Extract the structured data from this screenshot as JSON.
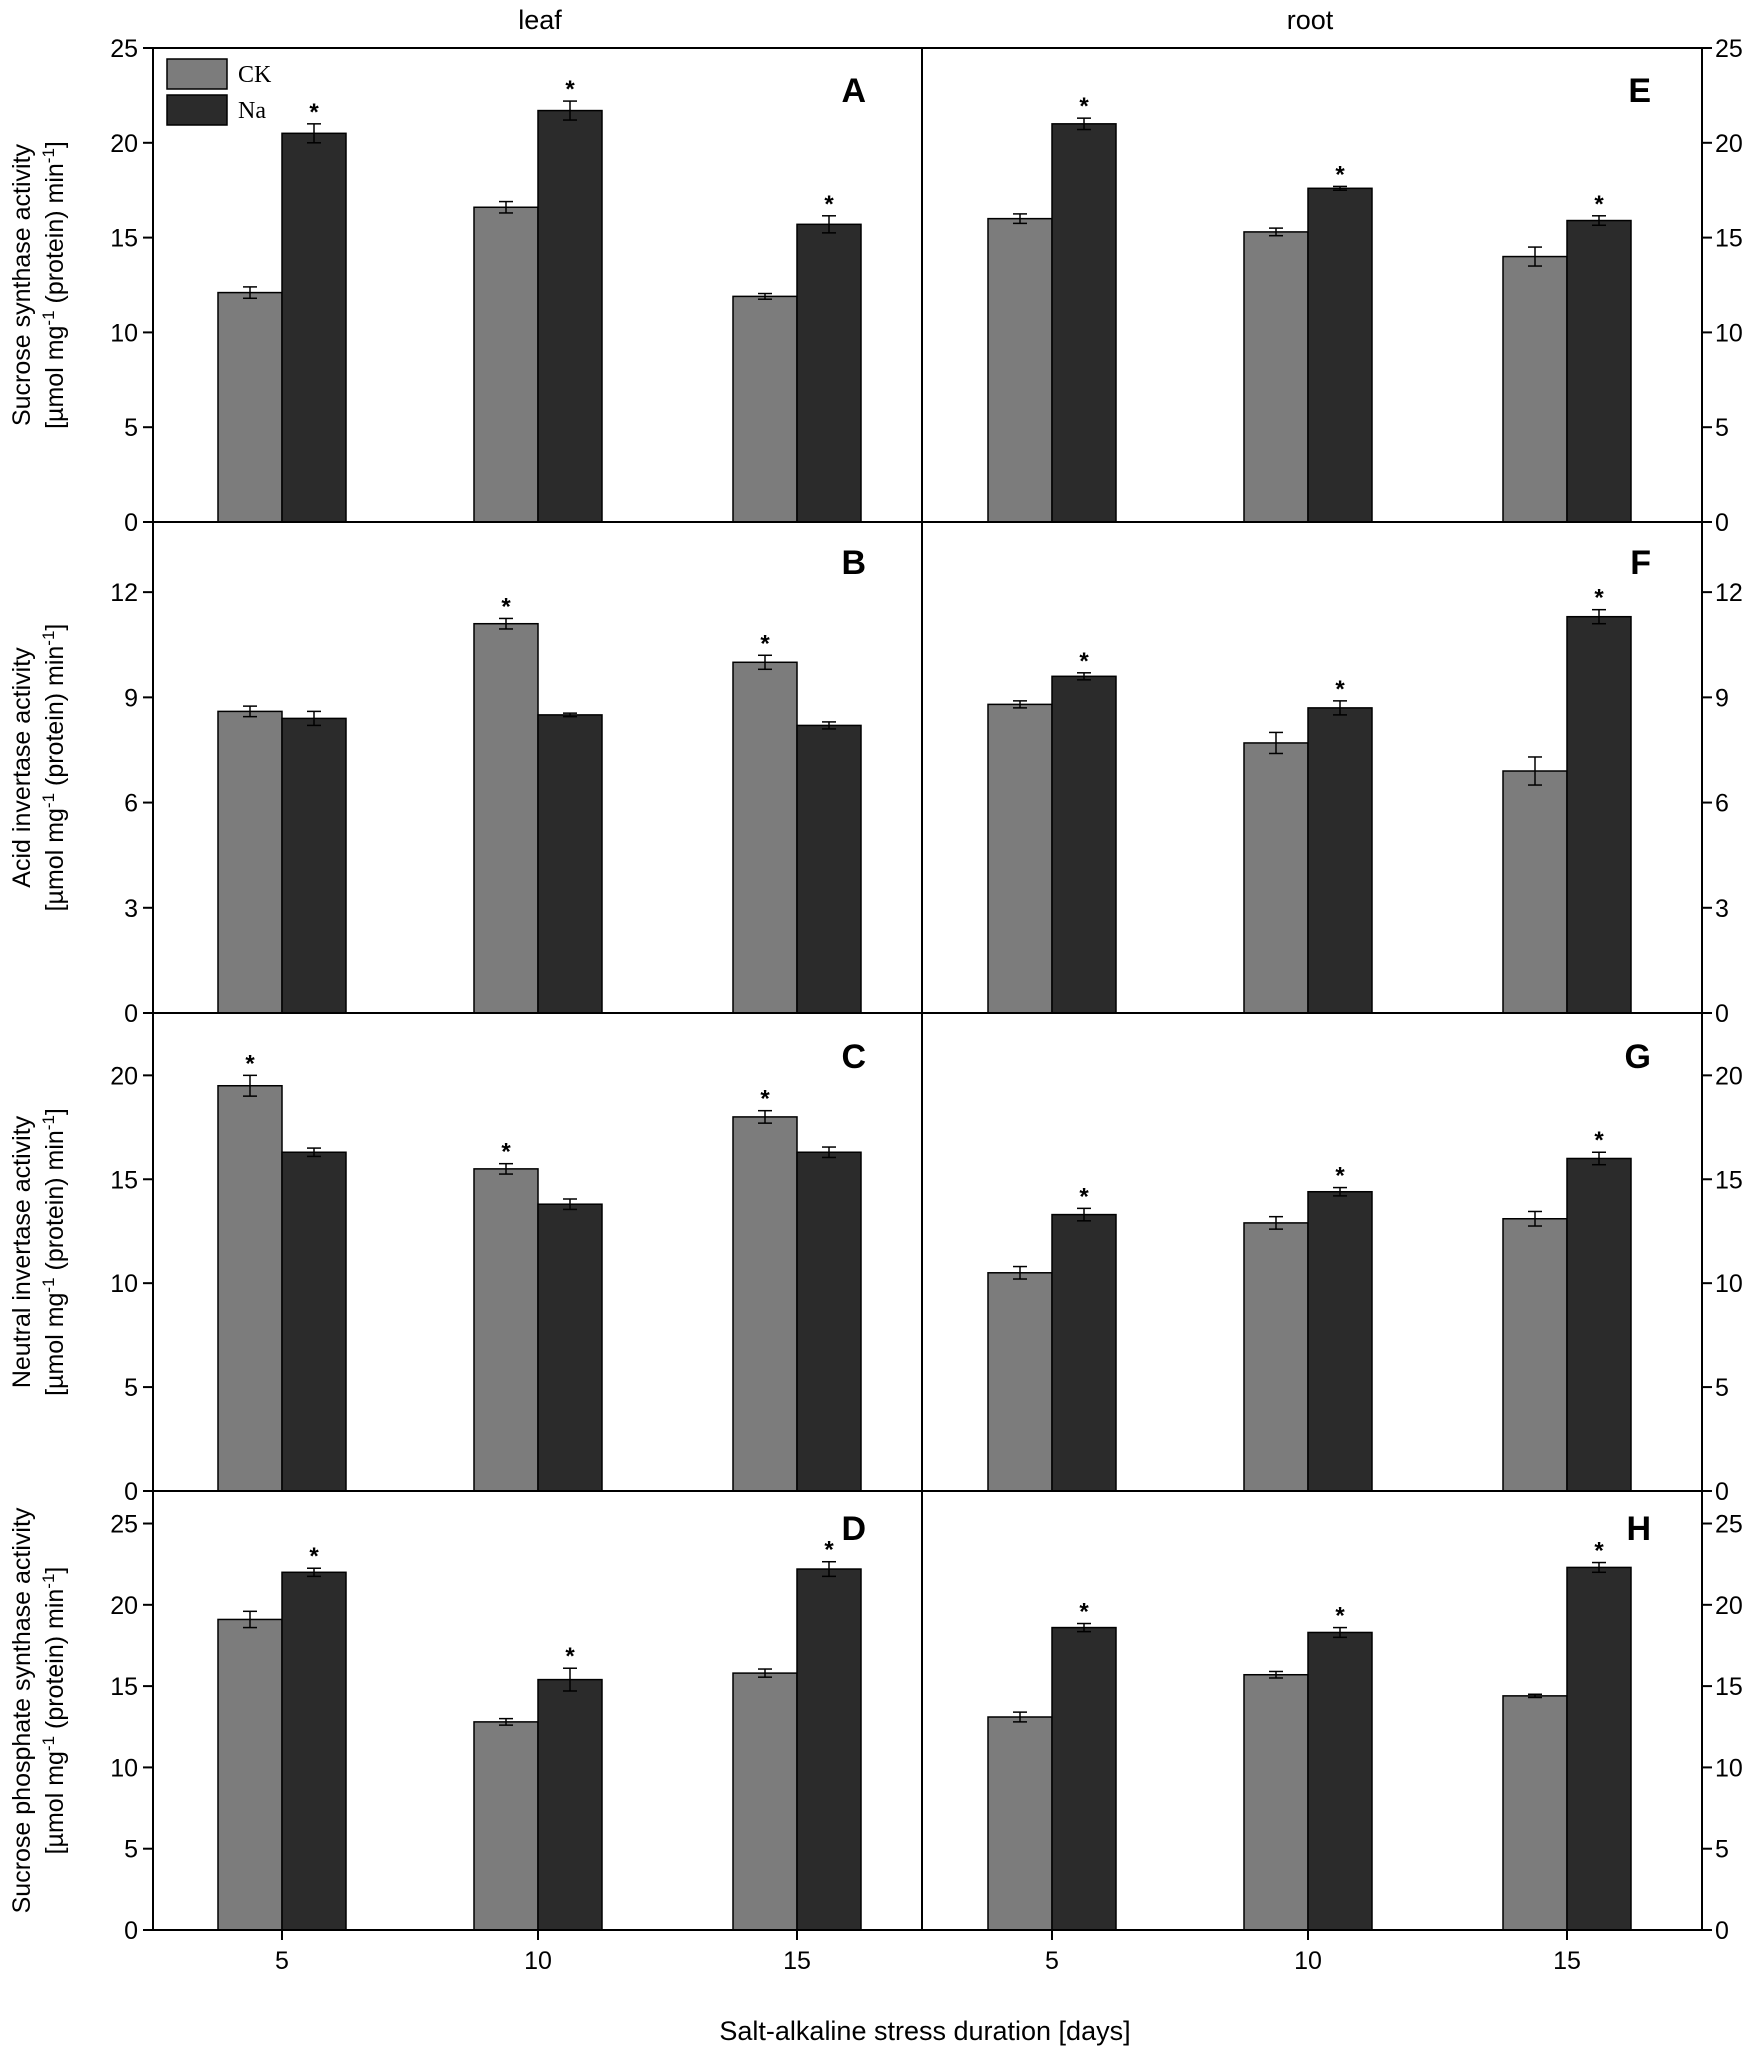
{
  "chart_data": {
    "type": "bar",
    "xlabel": "Salt-alkaline stress duration [days]",
    "categories": [
      "5",
      "10",
      "15"
    ],
    "columns": [
      "leaf",
      "root"
    ],
    "legend": {
      "position": "top-left",
      "entries": [
        "CK",
        "Na"
      ]
    },
    "colors": {
      "CK": "#7c7c7c",
      "Na": "#2b2b2b",
      "axis": "#000000"
    },
    "rows": [
      {
        "ylabel_line1": "Sucrose synthase activity",
        "ylabel_line2": [
          "[µmol mg",
          "-1",
          " (protein) min",
          "-1",
          "]"
        ],
        "ylim": [
          0,
          25
        ],
        "yticks": [
          "0",
          "5",
          "10",
          "15",
          "20",
          "25"
        ],
        "panels": [
          {
            "letter": "A",
            "series": [
              {
                "name": "CK",
                "values": [
                  12.1,
                  16.6,
                  11.9
                ],
                "errors": [
                  0.3,
                  0.3,
                  0.15
                ],
                "sig": [
                  false,
                  false,
                  false
                ]
              },
              {
                "name": "Na",
                "values": [
                  20.5,
                  21.7,
                  15.7
                ],
                "errors": [
                  0.5,
                  0.5,
                  0.45
                ],
                "sig": [
                  true,
                  true,
                  true
                ]
              }
            ]
          },
          {
            "letter": "E",
            "series": [
              {
                "name": "CK",
                "values": [
                  16.0,
                  15.3,
                  14.0
                ],
                "errors": [
                  0.25,
                  0.2,
                  0.5
                ],
                "sig": [
                  false,
                  false,
                  false
                ]
              },
              {
                "name": "Na",
                "values": [
                  21.0,
                  17.6,
                  15.9
                ],
                "errors": [
                  0.3,
                  0.1,
                  0.25
                ],
                "sig": [
                  true,
                  true,
                  true
                ]
              }
            ]
          }
        ]
      },
      {
        "ylabel_line1": "Acid invertase activity",
        "ylabel_line2": [
          "[µmol mg",
          "-1",
          " (protein) min",
          "-1",
          "]"
        ],
        "ylim": [
          0,
          14
        ],
        "yticks": [
          "0",
          "3",
          "6",
          "9",
          "12"
        ],
        "panels": [
          {
            "letter": "B",
            "series": [
              {
                "name": "CK",
                "values": [
                  8.6,
                  11.1,
                  10.0
                ],
                "errors": [
                  0.15,
                  0.15,
                  0.2
                ],
                "sig": [
                  false,
                  true,
                  true
                ]
              },
              {
                "name": "Na",
                "values": [
                  8.4,
                  8.5,
                  8.2
                ],
                "errors": [
                  0.2,
                  0.05,
                  0.1
                ],
                "sig": [
                  false,
                  false,
                  false
                ]
              }
            ]
          },
          {
            "letter": "F",
            "series": [
              {
                "name": "CK",
                "values": [
                  8.8,
                  7.7,
                  6.9
                ],
                "errors": [
                  0.1,
                  0.3,
                  0.4
                ],
                "sig": [
                  false,
                  false,
                  false
                ]
              },
              {
                "name": "Na",
                "values": [
                  9.6,
                  8.7,
                  11.3
                ],
                "errors": [
                  0.1,
                  0.2,
                  0.2
                ],
                "sig": [
                  true,
                  true,
                  true
                ]
              }
            ]
          }
        ]
      },
      {
        "ylabel_line1": "Neutral invertase activity",
        "ylabel_line2": [
          "[µmol mg",
          "-1",
          " (protein) min",
          "-1",
          "]"
        ],
        "ylim": [
          0,
          23
        ],
        "yticks": [
          "0",
          "5",
          "10",
          "15",
          "20"
        ],
        "panels": [
          {
            "letter": "C",
            "series": [
              {
                "name": "CK",
                "values": [
                  19.5,
                  15.5,
                  18.0
                ],
                "errors": [
                  0.5,
                  0.25,
                  0.3
                ],
                "sig": [
                  true,
                  true,
                  true
                ]
              },
              {
                "name": "Na",
                "values": [
                  16.3,
                  13.8,
                  16.3
                ],
                "errors": [
                  0.2,
                  0.25,
                  0.25
                ],
                "sig": [
                  false,
                  false,
                  false
                ]
              }
            ]
          },
          {
            "letter": "G",
            "series": [
              {
                "name": "CK",
                "values": [
                  10.5,
                  12.9,
                  13.1
                ],
                "errors": [
                  0.3,
                  0.3,
                  0.35
                ],
                "sig": [
                  false,
                  false,
                  false
                ]
              },
              {
                "name": "Na",
                "values": [
                  13.3,
                  14.4,
                  16.0
                ],
                "errors": [
                  0.3,
                  0.2,
                  0.3
                ],
                "sig": [
                  true,
                  true,
                  true
                ]
              }
            ]
          }
        ]
      },
      {
        "ylabel_line1": "Sucrose phosphate synthase activity",
        "ylabel_line2": [
          "[µmol mg",
          "-1",
          " (protein) min",
          "-1",
          "]"
        ],
        "ylim": [
          0,
          27
        ],
        "yticks": [
          "0",
          "5",
          "10",
          "15",
          "20",
          "25"
        ],
        "panels": [
          {
            "letter": "D",
            "series": [
              {
                "name": "CK",
                "values": [
                  19.1,
                  12.8,
                  15.8
                ],
                "errors": [
                  0.5,
                  0.2,
                  0.25
                ],
                "sig": [
                  false,
                  false,
                  false
                ]
              },
              {
                "name": "Na",
                "values": [
                  22.0,
                  15.4,
                  22.2
                ],
                "errors": [
                  0.25,
                  0.7,
                  0.45
                ],
                "sig": [
                  true,
                  true,
                  true
                ]
              }
            ]
          },
          {
            "letter": "H",
            "series": [
              {
                "name": "CK",
                "values": [
                  13.1,
                  15.7,
                  14.4
                ],
                "errors": [
                  0.3,
                  0.2,
                  0.1
                ],
                "sig": [
                  false,
                  false,
                  false
                ]
              },
              {
                "name": "Na",
                "values": [
                  18.6,
                  18.3,
                  22.3
                ],
                "errors": [
                  0.25,
                  0.3,
                  0.3
                ],
                "sig": [
                  true,
                  true,
                  true
                ]
              }
            ]
          }
        ]
      }
    ]
  }
}
